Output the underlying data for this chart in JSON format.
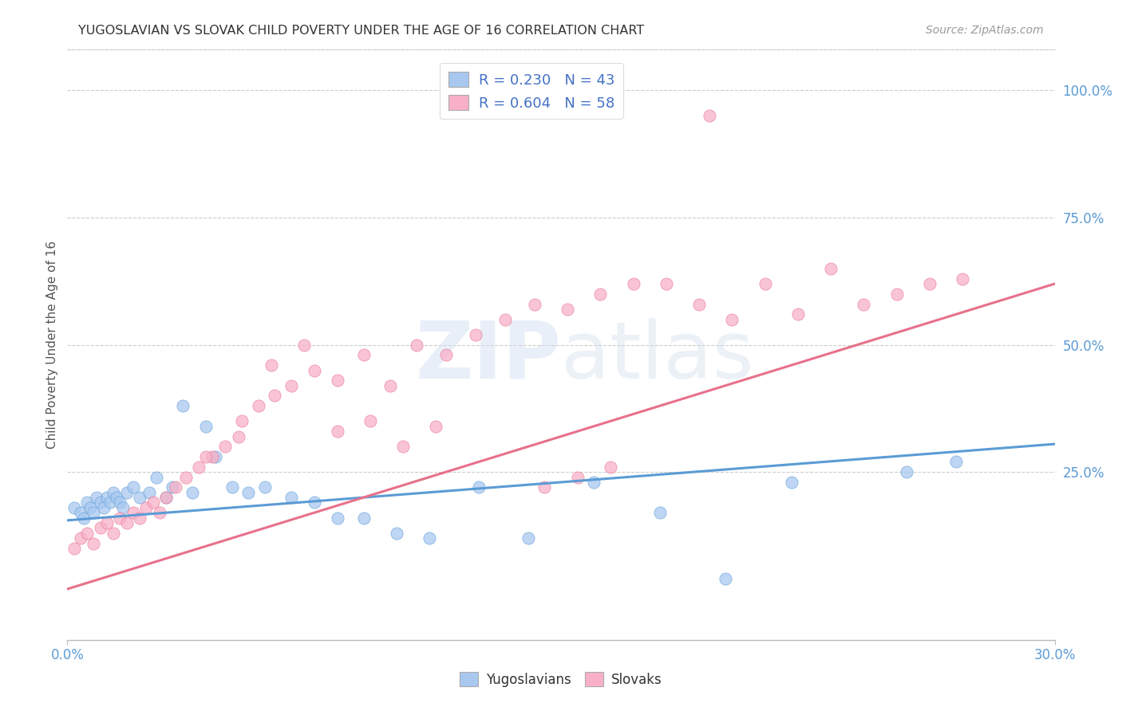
{
  "title": "YUGOSLAVIAN VS SLOVAK CHILD POVERTY UNDER THE AGE OF 16 CORRELATION CHART",
  "source": "Source: ZipAtlas.com",
  "ylabel": "Child Poverty Under the Age of 16",
  "r_yugo": 0.23,
  "n_yugo": 43,
  "r_slovak": 0.604,
  "n_slovak": 58,
  "color_yugo": "#A8C8F0",
  "color_slovak": "#F8B0C8",
  "color_yugo_line": "#5B9BD5",
  "color_slovak_line": "#E8708A",
  "color_legend_text": "#4472C4",
  "color_title": "#404040",
  "color_source": "#999999",
  "background_color": "#FFFFFF",
  "x_min": 0.0,
  "x_max": 0.3,
  "y_min": -0.08,
  "y_max": 1.08,
  "right_yticks": [
    1.0,
    0.75,
    0.5,
    0.25
  ],
  "right_yticklabels": [
    "100.0%",
    "75.0%",
    "50.0%",
    "25.0%"
  ],
  "yugo_scatter_x": [
    0.002,
    0.004,
    0.005,
    0.006,
    0.007,
    0.008,
    0.009,
    0.01,
    0.011,
    0.012,
    0.013,
    0.014,
    0.015,
    0.016,
    0.017,
    0.018,
    0.02,
    0.022,
    0.025,
    0.027,
    0.03,
    0.032,
    0.035,
    0.038,
    0.042,
    0.045,
    0.05,
    0.055,
    0.06,
    0.068,
    0.075,
    0.082,
    0.09,
    0.1,
    0.11,
    0.125,
    0.14,
    0.16,
    0.18,
    0.2,
    0.22,
    0.255,
    0.27
  ],
  "yugo_scatter_y": [
    0.18,
    0.17,
    0.16,
    0.19,
    0.18,
    0.17,
    0.2,
    0.19,
    0.18,
    0.2,
    0.19,
    0.21,
    0.2,
    0.19,
    0.18,
    0.21,
    0.22,
    0.2,
    0.21,
    0.24,
    0.2,
    0.22,
    0.38,
    0.21,
    0.34,
    0.28,
    0.22,
    0.21,
    0.22,
    0.2,
    0.19,
    0.16,
    0.16,
    0.13,
    0.12,
    0.22,
    0.12,
    0.23,
    0.17,
    0.04,
    0.23,
    0.25,
    0.27
  ],
  "slovak_scatter_x": [
    0.002,
    0.004,
    0.006,
    0.008,
    0.01,
    0.012,
    0.014,
    0.016,
    0.018,
    0.02,
    0.022,
    0.024,
    0.026,
    0.028,
    0.03,
    0.033,
    0.036,
    0.04,
    0.044,
    0.048,
    0.053,
    0.058,
    0.063,
    0.068,
    0.075,
    0.082,
    0.09,
    0.098,
    0.106,
    0.115,
    0.124,
    0.133,
    0.142,
    0.152,
    0.162,
    0.172,
    0.182,
    0.192,
    0.202,
    0.212,
    0.222,
    0.232,
    0.242,
    0.252,
    0.262,
    0.272,
    0.195,
    0.145,
    0.155,
    0.165,
    0.082,
    0.092,
    0.102,
    0.112,
    0.062,
    0.072,
    0.042,
    0.052
  ],
  "slovak_scatter_y": [
    0.1,
    0.12,
    0.13,
    0.11,
    0.14,
    0.15,
    0.13,
    0.16,
    0.15,
    0.17,
    0.16,
    0.18,
    0.19,
    0.17,
    0.2,
    0.22,
    0.24,
    0.26,
    0.28,
    0.3,
    0.35,
    0.38,
    0.4,
    0.42,
    0.45,
    0.43,
    0.48,
    0.42,
    0.5,
    0.48,
    0.52,
    0.55,
    0.58,
    0.57,
    0.6,
    0.62,
    0.62,
    0.58,
    0.55,
    0.62,
    0.56,
    0.65,
    0.58,
    0.6,
    0.62,
    0.63,
    0.95,
    0.22,
    0.24,
    0.26,
    0.33,
    0.35,
    0.3,
    0.34,
    0.46,
    0.5,
    0.28,
    0.32
  ],
  "yugo_line_x0": 0.0,
  "yugo_line_x1": 0.3,
  "yugo_line_y0": 0.155,
  "yugo_line_y1": 0.305,
  "slovak_line_x0": 0.0,
  "slovak_line_x1": 0.3,
  "slovak_line_y0": 0.02,
  "slovak_line_y1": 0.62
}
